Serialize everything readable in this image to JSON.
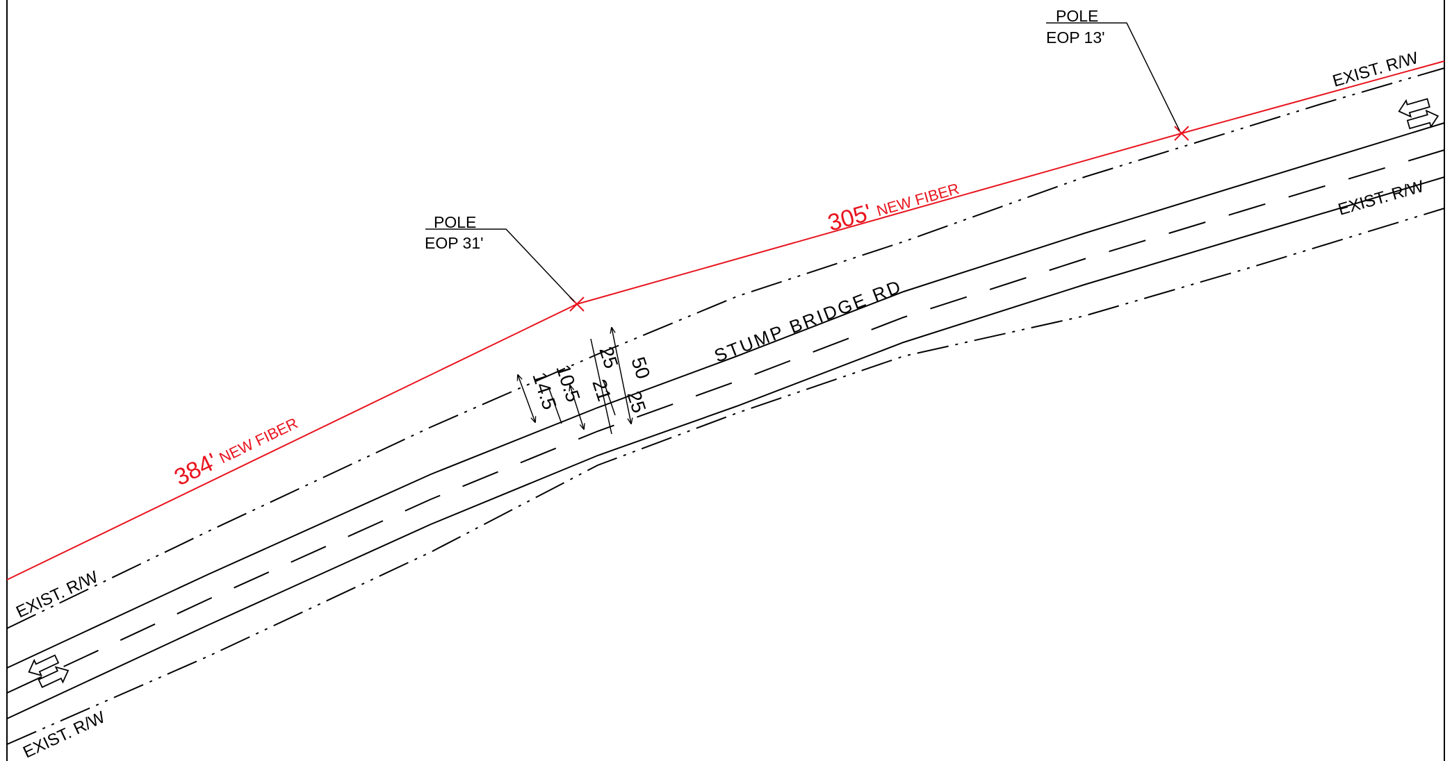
{
  "road": {
    "name": "STUMP BRIDGE RD"
  },
  "right_of_way": {
    "label_upper_left": "EXIST. R/W",
    "label_lower_left": "EXIST. R/W",
    "label_upper_right": "EXIST. R/W",
    "label_lower_right": "EXIST. R/W"
  },
  "poles": [
    {
      "label": "POLE",
      "offset": "EOP 31'"
    },
    {
      "label": "POLE",
      "offset": "EOP 13'"
    }
  ],
  "fiber_runs": [
    {
      "length": "384'",
      "label": "NEW FIBER"
    },
    {
      "length": "305'",
      "label": "NEW FIBER"
    }
  ],
  "dimensions": {
    "total_row": "50",
    "upper_row": "25",
    "lower_row": "25",
    "pavement": "21",
    "lane": "10.5",
    "shoulder": "14.5"
  },
  "colors": {
    "linework": "#000000",
    "proposed_fiber": "#e8141e"
  },
  "icons": [
    "traffic-direction-arrows-icon",
    "pole-x-marker-icon"
  ]
}
